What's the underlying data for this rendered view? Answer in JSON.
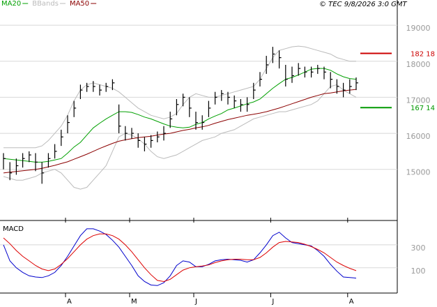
{
  "chart_data": [
    {
      "type": "ohlc",
      "source": "© TEC 9/8/2026 3:0 GMT",
      "categories": [
        null,
        null,
        null,
        null,
        null,
        null,
        null,
        null,
        null,
        null,
        "A",
        null,
        null,
        null,
        null,
        null,
        null,
        null,
        null,
        null,
        "M",
        null,
        null,
        null,
        null,
        null,
        null,
        null,
        null,
        null,
        "J",
        null,
        null,
        null,
        null,
        null,
        null,
        null,
        null,
        null,
        null,
        null,
        "J",
        null,
        null,
        null,
        null,
        null,
        null,
        null,
        null,
        null,
        null,
        null,
        "A",
        null
      ],
      "color": "#000000",
      "high": [
        15450,
        15200,
        15300,
        15450,
        15500,
        15450,
        15200,
        15450,
        15700,
        16100,
        16500,
        16900,
        17350,
        17400,
        17450,
        17350,
        17400,
        17500,
        16800,
        16200,
        16150,
        16000,
        15900,
        15950,
        16050,
        16200,
        16600,
        16950,
        17100,
        17000,
        16600,
        16500,
        16900,
        17150,
        17200,
        17150,
        17050,
        16950,
        17000,
        17400,
        17700,
        18150,
        18400,
        18300,
        17900,
        17850,
        17950,
        17850,
        17850,
        17900,
        17850,
        17700,
        17500,
        17400,
        17500,
        17550
      ],
      "low": [
        15000,
        14700,
        14850,
        15050,
        15200,
        14950,
        14600,
        15050,
        15300,
        15650,
        16000,
        16450,
        16950,
        17150,
        17150,
        17050,
        17150,
        17200,
        16000,
        15800,
        15850,
        15600,
        15500,
        15600,
        15750,
        15800,
        16150,
        16500,
        16750,
        16450,
        16100,
        16100,
        16450,
        16800,
        16900,
        16800,
        16700,
        16600,
        16600,
        16950,
        17300,
        17650,
        17950,
        17800,
        17300,
        17400,
        17600,
        17550,
        17550,
        17650,
        17500,
        17250,
        17100,
        17000,
        17100,
        17200
      ],
      "close": [
        15300,
        14900,
        15100,
        15300,
        15400,
        15200,
        14900,
        15300,
        15500,
        15900,
        16300,
        16700,
        17200,
        17300,
        17300,
        17200,
        17300,
        17400,
        16200,
        16000,
        16000,
        15800,
        15700,
        15800,
        15900,
        16000,
        16400,
        16800,
        17000,
        16700,
        16300,
        16300,
        16700,
        17000,
        17100,
        17000,
        16900,
        16800,
        16800,
        17200,
        17500,
        17900,
        18200,
        18100,
        17500,
        17600,
        17800,
        17700,
        17700,
        17800,
        17700,
        17500,
        17300,
        17200,
        17300,
        17400
      ],
      "series": [
        {
          "name": "MA20",
          "color": "#00a000",
          "values": [
            15300,
            15280,
            15260,
            15240,
            15220,
            15200,
            15200,
            15220,
            15260,
            15300,
            15450,
            15620,
            15750,
            15950,
            16150,
            16280,
            16400,
            16500,
            16600,
            16600,
            16580,
            16520,
            16450,
            16400,
            16330,
            16260,
            16200,
            16170,
            16150,
            16170,
            16250,
            16300,
            16400,
            16480,
            16550,
            16650,
            16700,
            16760,
            16820,
            16870,
            16950,
            17100,
            17250,
            17380,
            17500,
            17550,
            17620,
            17700,
            17780,
            17800,
            17800,
            17750,
            17650,
            17570,
            17520,
            17500
          ]
        },
        {
          "name": "BBands",
          "color": "#bbbbbb",
          "upper": [
            15600,
            15600,
            15600,
            15600,
            15600,
            15600,
            15650,
            15800,
            16000,
            16200,
            16500,
            16900,
            17200,
            17350,
            17400,
            17350,
            17300,
            17250,
            17150,
            17000,
            16850,
            16700,
            16600,
            16500,
            16450,
            16400,
            16450,
            16550,
            16800,
            17000,
            17100,
            17050,
            17000,
            17000,
            17050,
            17100,
            17150,
            17200,
            17250,
            17300,
            17500,
            17800,
            18100,
            18300,
            18350,
            18400,
            18420,
            18400,
            18350,
            18300,
            18250,
            18200,
            18100,
            18050,
            18000,
            18000
          ],
          "lower": [
            14800,
            14750,
            14700,
            14700,
            14750,
            14800,
            14900,
            14950,
            15000,
            14900,
            14700,
            14500,
            14450,
            14500,
            14700,
            14900,
            15100,
            15500,
            15900,
            16000,
            15950,
            15850,
            15700,
            15500,
            15350,
            15300,
            15350,
            15400,
            15500,
            15600,
            15700,
            15800,
            15850,
            15900,
            16000,
            16050,
            16100,
            16200,
            16300,
            16400,
            16450,
            16500,
            16550,
            16600,
            16600,
            16650,
            16700,
            16750,
            16800,
            16900,
            17100,
            17300,
            17350,
            17200,
            17100,
            17000
          ]
        },
        {
          "name": "MA50",
          "color": "#8b0000",
          "values": [
            14900,
            14920,
            14940,
            14960,
            14980,
            15000,
            15030,
            15070,
            15110,
            15160,
            15210,
            15280,
            15350,
            15420,
            15500,
            15580,
            15650,
            15720,
            15780,
            15820,
            15850,
            15880,
            15900,
            15920,
            15950,
            15980,
            16000,
            16040,
            16080,
            16110,
            16150,
            16180,
            16220,
            16280,
            16330,
            16380,
            16420,
            16460,
            16500,
            16530,
            16560,
            16600,
            16650,
            16700,
            16760,
            16820,
            16880,
            16940,
            17000,
            17050,
            17100,
            17120,
            17150,
            17180,
            17200,
            17220
          ]
        }
      ],
      "annotations": [
        {
          "value": 18218,
          "label": "182 18",
          "color": "#cc0000"
        },
        {
          "value": 16714,
          "label": "167 14",
          "color": "#009900"
        }
      ],
      "ylim": [
        13600,
        19700
      ],
      "yticks": [
        15000,
        16000,
        17000,
        18000,
        19000
      ],
      "grid": true
    },
    {
      "type": "line",
      "title": "MACD",
      "series": [
        {
          "color": "#0000cc",
          "values": [
            300,
            160,
            100,
            60,
            30,
            20,
            15,
            30,
            60,
            120,
            200,
            290,
            380,
            440,
            440,
            420,
            390,
            340,
            280,
            200,
            120,
            30,
            -20,
            -50,
            -55,
            -30,
            30,
            120,
            160,
            150,
            110,
            110,
            130,
            160,
            170,
            175,
            170,
            165,
            150,
            170,
            230,
            300,
            380,
            410,
            360,
            320,
            310,
            300,
            290,
            250,
            200,
            130,
            70,
            20,
            15,
            10
          ]
        },
        {
          "color": "#dd0000",
          "values": [
            360,
            310,
            250,
            200,
            160,
            120,
            90,
            75,
            90,
            130,
            180,
            240,
            300,
            350,
            380,
            395,
            395,
            380,
            350,
            300,
            240,
            170,
            100,
            40,
            -10,
            -20,
            0,
            40,
            80,
            100,
            110,
            115,
            125,
            145,
            160,
            170,
            175,
            175,
            170,
            170,
            190,
            230,
            280,
            320,
            330,
            325,
            320,
            305,
            285,
            260,
            230,
            190,
            150,
            120,
            95,
            75
          ]
        }
      ],
      "ylim": [
        -120,
        500
      ],
      "yticks": [
        100,
        300
      ],
      "grid": true
    }
  ]
}
